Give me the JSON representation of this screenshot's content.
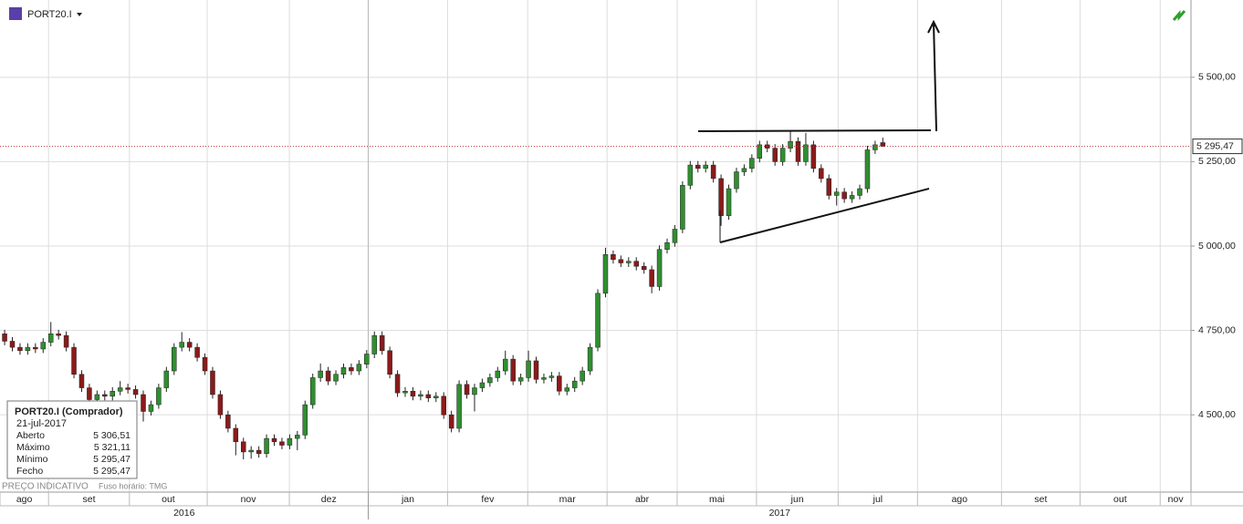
{
  "chart_data": {
    "type": "candlestick",
    "symbol": "PORT20.I",
    "up_color": "#2f8f2f",
    "down_color": "#8b1a1a",
    "open": [
      4740,
      4718,
      4700,
      4690,
      4700,
      4695,
      4715,
      4740,
      4735,
      4700,
      4620,
      4580,
      4545,
      4560,
      4555,
      4570,
      4580,
      4575,
      4560,
      4510,
      4530,
      4580,
      4630,
      4700,
      4715,
      4700,
      4670,
      4630,
      4560,
      4500,
      4460,
      4420,
      4390,
      4395,
      4385,
      4430,
      4420,
      4410,
      4430,
      4440,
      4530,
      4610,
      4630,
      4600,
      4620,
      4640,
      4630,
      4650,
      4680,
      4735,
      4690,
      4620,
      4565,
      4570,
      4555,
      4560,
      4550,
      4555,
      4500,
      4460,
      4590,
      4560,
      4580,
      4595,
      4610,
      4630,
      4665,
      4600,
      4610,
      4660,
      4605,
      4610,
      4615,
      4570,
      4580,
      4600,
      4630,
      4700,
      4860,
      4975,
      4960,
      4950,
      4955,
      4940,
      4930,
      4880,
      4990,
      5010,
      5050,
      5180,
      5240,
      5230,
      5240,
      5200,
      5090,
      5170,
      5220,
      5230,
      5260,
      5300,
      5290,
      5250,
      5290,
      5310,
      5250,
      5300,
      5230,
      5200,
      5150,
      5160,
      5140,
      5150,
      5170,
      5285,
      5306.51
    ],
    "high": [
      4752,
      4730,
      4712,
      4712,
      4712,
      4727,
      4775,
      4752,
      4747,
      4712,
      4632,
      4592,
      4572,
      4572,
      4582,
      4600,
      4592,
      4587,
      4572,
      4542,
      4592,
      4642,
      4712,
      4745,
      4727,
      4712,
      4682,
      4642,
      4572,
      4512,
      4472,
      4432,
      4407,
      4407,
      4442,
      4442,
      4432,
      4442,
      4452,
      4542,
      4622,
      4652,
      4642,
      4632,
      4652,
      4652,
      4662,
      4692,
      4747,
      4747,
      4702,
      4632,
      4582,
      4582,
      4572,
      4572,
      4567,
      4567,
      4512,
      4602,
      4602,
      4592,
      4607,
      4622,
      4642,
      4690,
      4677,
      4622,
      4690,
      4672,
      4622,
      4627,
      4627,
      4592,
      4612,
      4642,
      4712,
      4872,
      4995,
      4987,
      4972,
      4967,
      4967,
      4952,
      4942,
      5002,
      5022,
      5062,
      5192,
      5252,
      5252,
      5252,
      5252,
      5212,
      5182,
      5232,
      5242,
      5272,
      5312,
      5312,
      5302,
      5302,
      5340,
      5322,
      5335,
      5312,
      5242,
      5212,
      5172,
      5172,
      5162,
      5182,
      5297,
      5312,
      5321.11
    ],
    "low": [
      4706,
      4688,
      4678,
      4678,
      4683,
      4683,
      4703,
      4723,
      4688,
      4608,
      4568,
      4533,
      4533,
      4543,
      4543,
      4558,
      4563,
      4548,
      4480,
      4498,
      4518,
      4568,
      4618,
      4688,
      4688,
      4658,
      4618,
      4548,
      4488,
      4448,
      4380,
      4368,
      4370,
      4373,
      4373,
      4408,
      4398,
      4398,
      4395,
      4428,
      4518,
      4598,
      4588,
      4588,
      4608,
      4618,
      4618,
      4638,
      4668,
      4678,
      4608,
      4553,
      4553,
      4543,
      4543,
      4538,
      4538,
      4488,
      4448,
      4448,
      4548,
      4510,
      4568,
      4583,
      4598,
      4618,
      4588,
      4588,
      4598,
      4593,
      4593,
      4598,
      4558,
      4558,
      4568,
      4588,
      4618,
      4688,
      4848,
      4948,
      4938,
      4938,
      4928,
      4918,
      4860,
      4868,
      4978,
      4998,
      5038,
      5168,
      5218,
      5218,
      5188,
      5060,
      5078,
      5158,
      5208,
      5218,
      5248,
      5278,
      5238,
      5238,
      5278,
      5238,
      5238,
      5218,
      5188,
      5138,
      5120,
      5128,
      5128,
      5138,
      5158,
      5273,
      5295.47
    ],
    "close": [
      4718,
      4700,
      4690,
      4700,
      4695,
      4715,
      4740,
      4735,
      4700,
      4620,
      4580,
      4545,
      4560,
      4555,
      4570,
      4580,
      4575,
      4560,
      4510,
      4530,
      4580,
      4630,
      4700,
      4715,
      4700,
      4670,
      4630,
      4560,
      4500,
      4460,
      4420,
      4390,
      4395,
      4385,
      4430,
      4420,
      4410,
      4430,
      4440,
      4530,
      4610,
      4630,
      4600,
      4620,
      4640,
      4630,
      4650,
      4680,
      4735,
      4690,
      4620,
      4565,
      4570,
      4555,
      4560,
      4550,
      4555,
      4500,
      4460,
      4590,
      4560,
      4580,
      4595,
      4610,
      4630,
      4665,
      4600,
      4610,
      4660,
      4605,
      4610,
      4615,
      4570,
      4580,
      4600,
      4630,
      4700,
      4860,
      4975,
      4960,
      4950,
      4955,
      4940,
      4930,
      4880,
      4990,
      5010,
      5050,
      5180,
      5240,
      5230,
      5240,
      5200,
      5090,
      5170,
      5220,
      5230,
      5260,
      5300,
      5290,
      5250,
      5290,
      5310,
      5250,
      5300,
      5230,
      5200,
      5150,
      5160,
      5140,
      5150,
      5170,
      5285,
      5300,
      5295.47
    ],
    "xlim": [
      -0.6,
      154
    ],
    "ylim": [
      4271,
      5729
    ],
    "yticks": [
      {
        "value": 4500,
        "label": "4 500,00"
      },
      {
        "value": 4750,
        "label": "4 750,00"
      },
      {
        "value": 5000,
        "label": "5 000,00"
      },
      {
        "value": 5250,
        "label": "5 250,00"
      },
      {
        "value": 5500,
        "label": "5 500,00"
      }
    ],
    "grid": true,
    "last_price": {
      "value": 5295.47,
      "label": "5 295,47"
    },
    "months": {
      "labels": [
        "ago",
        "set",
        "out",
        "nov",
        "dez",
        "jan",
        "fev",
        "mar",
        "abr",
        "mai",
        "jun",
        "jul",
        "ago",
        "set",
        "out",
        "nov"
      ],
      "edges": [
        -0.6,
        5.7,
        16.2,
        26.3,
        36.96,
        47.2,
        57.5,
        67.9,
        78.2,
        87.3,
        97.6,
        108.2,
        118.5,
        129.4,
        139.6,
        150,
        154
      ]
    },
    "years": {
      "labels": [
        "2016",
        "2017"
      ],
      "edges": [
        -0.6,
        47.2,
        154
      ]
    },
    "info": {
      "title": "PORT20.I (Comprador)",
      "date": "21-jul-2017",
      "rows": [
        [
          "Aberto",
          "5 306,51"
        ],
        [
          "Máximo",
          "5 321,11"
        ],
        [
          "Mínimo",
          "5 295,47"
        ],
        [
          "Fecho",
          "5 295,47"
        ]
      ]
    },
    "footer": [
      "PREÇO INDICATIVO",
      "Fuso horário: TMG"
    ]
  }
}
